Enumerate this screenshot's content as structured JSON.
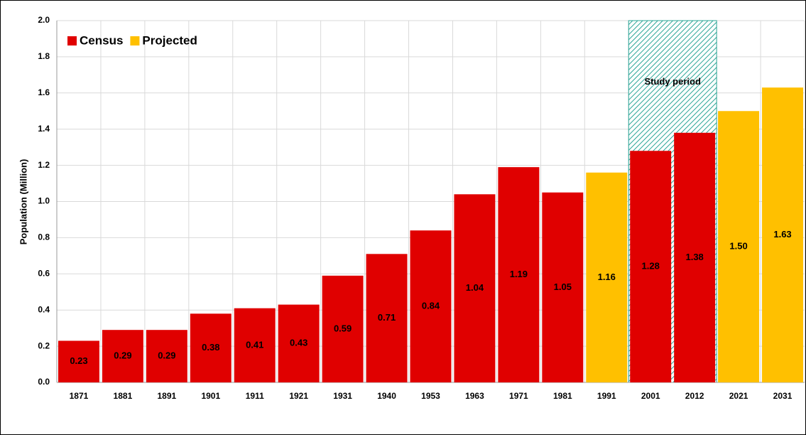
{
  "chart_data": {
    "type": "bar",
    "y_label": "Population (Million)",
    "categories": [
      "1871",
      "1881",
      "1891",
      "1901",
      "1911",
      "1921",
      "1931",
      "1940",
      "1953",
      "1963",
      "1971",
      "1981",
      "1991",
      "2001",
      "2012",
      "2021",
      "2031"
    ],
    "series": [
      {
        "name": "Census",
        "color": "#e00000",
        "values": [
          0.23,
          0.29,
          0.29,
          0.38,
          0.41,
          0.43,
          0.59,
          0.71,
          0.84,
          1.04,
          1.19,
          1.05,
          null,
          1.28,
          1.38,
          null,
          null
        ],
        "value_labels": [
          "0.23",
          "0.29",
          "0.29",
          "0.38",
          "0.41",
          "0.43",
          "0.59",
          "0.71",
          "0.84",
          "1.04",
          "1.19",
          "1.05",
          null,
          "1.28",
          "1.38",
          null,
          null
        ]
      },
      {
        "name": "Projected",
        "color": "#ffc000",
        "values": [
          null,
          null,
          null,
          null,
          null,
          null,
          null,
          null,
          null,
          null,
          null,
          null,
          1.16,
          null,
          null,
          1.5,
          1.63
        ],
        "value_labels": [
          null,
          null,
          null,
          null,
          null,
          null,
          null,
          null,
          null,
          null,
          null,
          null,
          "1.16",
          null,
          null,
          "1.50",
          "1.63"
        ]
      }
    ],
    "shaded_span": {
      "label": "Study period",
      "from": "2001",
      "to": "2012"
    },
    "ylim": [
      0,
      2
    ],
    "yticks": [
      {
        "value": 0,
        "label": "0.0"
      },
      0.2,
      0.4,
      0.6,
      0.8,
      {
        "value": 1,
        "label": "1.0"
      },
      1.2,
      1.4,
      1.6,
      1.8,
      {
        "value": 2,
        "label": "2.0"
      }
    ],
    "grid": true,
    "legend": "top-left"
  }
}
